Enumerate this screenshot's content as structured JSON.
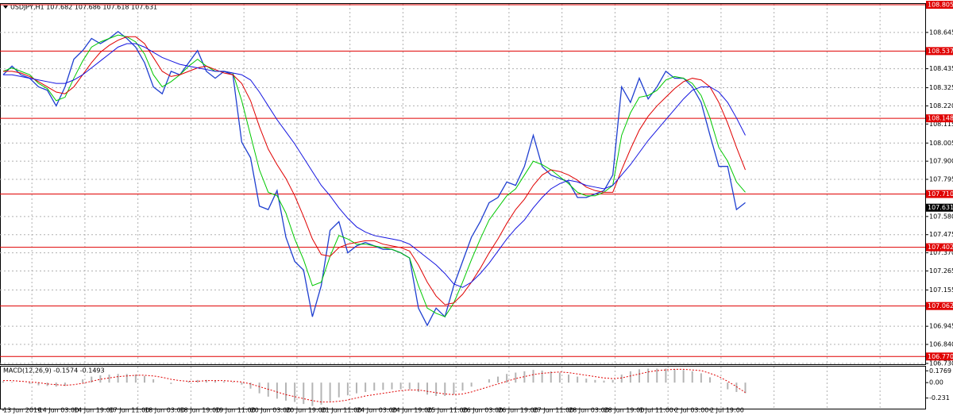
{
  "chart_data": [
    {
      "type": "line",
      "title": "USDJPY,H1 107.682 107.686 107.618 107.631",
      "categories": [
        "13 Jun 2019",
        null,
        null,
        null,
        "14 Jun 03:00",
        null,
        null,
        null,
        "14 Jun 19:00",
        null,
        null,
        null,
        "17 Jun 11:00",
        null,
        null,
        null,
        "18 Jun 03:00",
        null,
        null,
        null,
        "18 Jun 19:00",
        null,
        null,
        null,
        "19 Jun 11:00",
        null,
        null,
        null,
        "20 Jun 03:00",
        null,
        null,
        null,
        "20 Jun 19:00",
        null,
        null,
        null,
        "21 Jun 11:00",
        null,
        null,
        null,
        "24 Jun 03:00",
        null,
        null,
        null,
        "24 Jun 19:00",
        null,
        null,
        null,
        "25 Jun 11:00",
        null,
        null,
        null,
        "26 Jun 03:00",
        null,
        null,
        null,
        "26 Jun 19:00",
        null,
        null,
        null,
        "27 Jun 11:00",
        null,
        null,
        null,
        "28 Jun 03:00",
        null,
        null,
        null,
        "28 Jun 19:00",
        null,
        null,
        null,
        "1 Jul 11:00",
        null,
        null,
        null,
        "2 Jul 03:00",
        null,
        null,
        null,
        "2 Jul 19:00",
        null,
        null,
        null,
        null
      ],
      "series": [
        {
          "color": "#1f3fd0",
          "values": [
            108.4,
            108.45,
            108.4,
            108.38,
            108.33,
            108.31,
            108.22,
            108.33,
            108.49,
            108.54,
            108.61,
            108.58,
            108.61,
            108.65,
            108.61,
            108.56,
            108.47,
            108.33,
            108.29,
            108.42,
            108.4,
            108.47,
            108.54,
            108.42,
            108.38,
            108.42,
            108.4,
            108.01,
            107.92,
            107.64,
            107.62,
            107.73,
            107.46,
            107.32,
            107.27,
            107.0,
            107.18,
            107.5,
            107.55,
            107.37,
            107.41,
            107.43,
            107.41,
            107.39,
            107.39,
            107.37,
            107.34,
            107.05,
            106.95,
            107.05,
            107.0,
            107.18,
            107.32,
            107.46,
            107.55,
            107.66,
            107.69,
            107.78,
            107.76,
            107.87,
            108.05,
            107.87,
            107.82,
            107.8,
            107.78,
            107.69,
            107.69,
            107.71,
            107.73,
            107.82,
            108.33,
            108.24,
            108.38,
            108.26,
            108.33,
            108.42,
            108.38,
            108.38,
            108.33,
            108.24,
            108.05,
            107.87,
            107.87,
            107.62,
            107.66
          ]
        },
        {
          "color": "#00c800",
          "values": [
            108.42,
            108.44,
            108.42,
            108.4,
            108.35,
            108.32,
            108.25,
            108.27,
            108.38,
            108.48,
            108.56,
            108.59,
            108.61,
            108.63,
            108.62,
            108.59,
            108.52,
            108.4,
            108.33,
            108.36,
            108.4,
            108.45,
            108.49,
            108.45,
            108.42,
            108.42,
            108.41,
            108.25,
            108.05,
            107.85,
            107.72,
            107.7,
            107.6,
            107.45,
            107.33,
            107.18,
            107.2,
            107.35,
            107.47,
            107.45,
            107.42,
            107.42,
            107.41,
            107.4,
            107.39,
            107.37,
            107.34,
            107.18,
            107.05,
            107.02,
            107.0,
            107.08,
            107.2,
            107.33,
            107.45,
            107.56,
            107.63,
            107.7,
            107.74,
            107.82,
            107.9,
            107.88,
            107.85,
            107.81,
            107.77,
            107.72,
            107.7,
            107.7,
            107.72,
            107.76,
            108.05,
            108.18,
            108.27,
            108.28,
            108.31,
            108.37,
            108.39,
            108.38,
            108.35,
            108.28,
            108.15,
            107.98,
            107.9,
            107.78,
            107.72
          ]
        },
        {
          "color": "#e00000",
          "values": [
            108.42,
            108.42,
            108.41,
            108.39,
            108.36,
            108.33,
            108.3,
            108.29,
            108.33,
            108.4,
            108.47,
            108.53,
            108.57,
            108.6,
            108.62,
            108.62,
            108.58,
            108.5,
            108.42,
            108.39,
            108.4,
            108.42,
            108.44,
            108.45,
            108.43,
            108.41,
            108.4,
            108.35,
            108.25,
            108.1,
            107.97,
            107.88,
            107.8,
            107.7,
            107.58,
            107.45,
            107.36,
            107.35,
            107.4,
            107.42,
            107.43,
            107.44,
            107.44,
            107.42,
            107.41,
            107.4,
            107.38,
            107.3,
            107.2,
            107.12,
            107.07,
            107.08,
            107.13,
            107.2,
            107.28,
            107.37,
            107.45,
            107.54,
            107.62,
            107.68,
            107.76,
            107.82,
            107.85,
            107.84,
            107.82,
            107.79,
            107.75,
            107.73,
            107.72,
            107.72,
            107.85,
            107.97,
            108.08,
            108.16,
            108.22,
            108.27,
            108.32,
            108.36,
            108.38,
            108.37,
            108.33,
            108.24,
            108.12,
            107.98,
            107.85
          ]
        },
        {
          "color": "#1414e0",
          "values": [
            108.4,
            108.4,
            108.39,
            108.38,
            108.37,
            108.36,
            108.35,
            108.35,
            108.37,
            108.4,
            108.44,
            108.48,
            108.52,
            108.56,
            108.58,
            108.58,
            108.56,
            108.53,
            108.5,
            108.48,
            108.46,
            108.45,
            108.44,
            108.43,
            108.42,
            108.42,
            108.41,
            108.4,
            108.37,
            108.3,
            108.22,
            108.14,
            108.07,
            108.0,
            107.92,
            107.84,
            107.76,
            107.7,
            107.63,
            107.57,
            107.52,
            107.49,
            107.47,
            107.46,
            107.45,
            107.44,
            107.42,
            107.38,
            107.34,
            107.3,
            107.25,
            107.19,
            107.17,
            107.2,
            107.25,
            107.31,
            107.38,
            107.45,
            107.51,
            107.56,
            107.63,
            107.69,
            107.74,
            107.77,
            107.79,
            107.78,
            107.76,
            107.75,
            107.74,
            107.76,
            107.82,
            107.88,
            107.95,
            108.02,
            108.08,
            108.14,
            108.2,
            108.26,
            108.31,
            108.33,
            108.33,
            108.3,
            108.24,
            108.15,
            108.05
          ]
        }
      ],
      "ylim": [
        106.73,
        108.805
      ],
      "yticks": [
        108.645,
        108.435,
        108.325,
        {
          "value": 108.22,
          "label": "108.220"
        },
        108.115,
        108.005,
        {
          "value": 107.9,
          "label": "107.900"
        },
        107.795,
        {
          "value": 107.58,
          "label": "107.580"
        },
        107.475,
        {
          "value": 107.37,
          "label": "107.370"
        },
        107.265,
        107.155,
        106.945,
        {
          "value": 106.84,
          "label": "106.840"
        },
        {
          "value": 106.73,
          "label": "106.730"
        }
      ],
      "levels": [
        108.805,
        108.537,
        108.148,
        {
          "value": 107.71,
          "label": "107.710"
        },
        107.402,
        107.062,
        {
          "value": 106.77,
          "label": "106.770"
        }
      ],
      "level_color": "#e00000",
      "last": 107.631,
      "grid": true
    },
    {
      "type": "macd",
      "title": "MACD(12,26,9) -0.1574 -0.1493",
      "series": [
        {
          "color": "#b4b4b4",
          "values": [
            0.02,
            0.01,
            0.0,
            -0.02,
            -0.04,
            -0.05,
            -0.06,
            -0.05,
            0.0,
            0.05,
            0.09,
            0.11,
            0.12,
            0.13,
            0.13,
            0.12,
            0.1,
            0.05,
            0.0,
            -0.02,
            0.0,
            0.02,
            0.04,
            0.04,
            0.03,
            0.02,
            0.01,
            -0.03,
            -0.09,
            -0.16,
            -0.21,
            -0.24,
            -0.27,
            -0.29,
            -0.32,
            -0.35,
            -0.33,
            -0.28,
            -0.22,
            -0.19,
            -0.16,
            -0.14,
            -0.12,
            -0.11,
            -0.1,
            -0.1,
            -0.1,
            -0.14,
            -0.18,
            -0.2,
            -0.2,
            -0.18,
            -0.12,
            -0.06,
            0.0,
            0.05,
            0.09,
            0.13,
            0.15,
            0.17,
            0.19,
            0.18,
            0.17,
            0.15,
            0.12,
            0.09,
            0.06,
            0.04,
            0.03,
            0.04,
            0.12,
            0.17,
            0.2,
            0.21,
            0.21,
            0.21,
            0.2,
            0.19,
            0.17,
            0.14,
            0.08,
            0.0,
            -0.1,
            -0.14,
            -0.1574
          ]
        },
        {
          "color": "#e00000",
          "values": [
            0.03,
            0.03,
            0.02,
            0.01,
            0.0,
            -0.02,
            -0.03,
            -0.04,
            -0.03,
            -0.01,
            0.02,
            0.05,
            0.07,
            0.09,
            0.1,
            0.11,
            0.11,
            0.1,
            0.08,
            0.05,
            0.03,
            0.02,
            0.02,
            0.03,
            0.03,
            0.03,
            0.02,
            0.01,
            -0.02,
            -0.06,
            -0.1,
            -0.14,
            -0.18,
            -0.21,
            -0.24,
            -0.27,
            -0.29,
            -0.29,
            -0.28,
            -0.26,
            -0.23,
            -0.2,
            -0.18,
            -0.16,
            -0.14,
            -0.12,
            -0.11,
            -0.11,
            -0.13,
            -0.15,
            -0.17,
            -0.18,
            -0.17,
            -0.14,
            -0.1,
            -0.06,
            -0.02,
            0.02,
            0.06,
            0.09,
            0.12,
            0.14,
            0.15,
            0.16,
            0.15,
            0.13,
            0.11,
            0.09,
            0.07,
            0.06,
            0.07,
            0.1,
            0.13,
            0.16,
            0.18,
            0.19,
            0.2,
            0.2,
            0.19,
            0.18,
            0.14,
            0.09,
            0.02,
            -0.06,
            -0.1493
          ]
        }
      ],
      "ylim": [
        -0.39,
        0.24
      ],
      "yticks": [
        0.1769,
        {
          "value": 0,
          "label": "0.00"
        },
        -0.231
      ]
    }
  ]
}
